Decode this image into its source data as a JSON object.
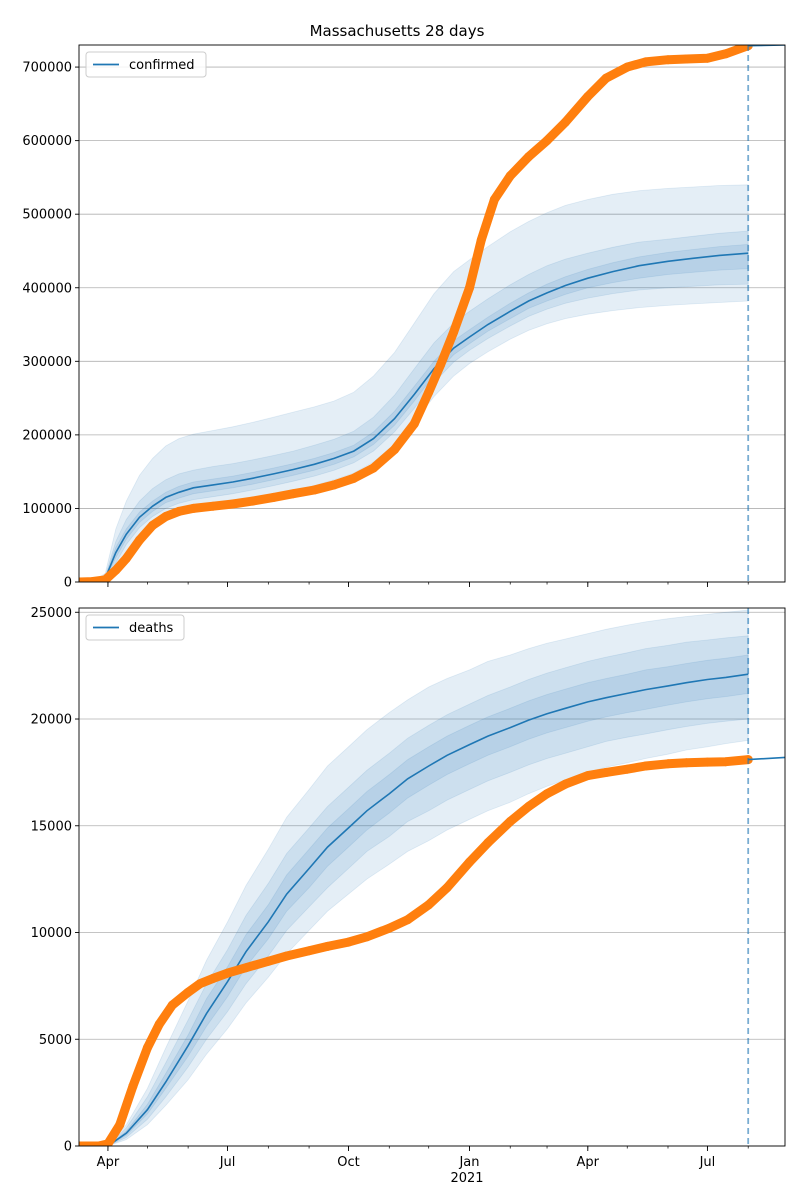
{
  "title": "Massachusetts 28 days",
  "colors": {
    "model": "#1f77b4",
    "observed": "#ff7f0e",
    "band": "#1f77b4",
    "grid": "#b0b0b0",
    "vline": "#1f77b4"
  },
  "x_ticks": [
    {
      "label": "Apr",
      "date": "2020-04-01"
    },
    {
      "label": "Jul",
      "date": "2020-07-01"
    },
    {
      "label": "Oct",
      "date": "2020-10-01"
    },
    {
      "label": "Jan",
      "date": "2021-01-01"
    },
    {
      "label": "Apr",
      "date": "2021-04-01"
    },
    {
      "label": "Jul",
      "date": "2021-07-01"
    }
  ],
  "x_year_label": "2021",
  "chart_data": [
    {
      "type": "line",
      "legend": "confirmed",
      "legend_position": "upper-left",
      "grid": "y",
      "xlim": [
        "2020-03-10",
        "2021-08-29"
      ],
      "ylim": [
        0,
        730000
      ],
      "yticks": [
        0,
        100000,
        200000,
        300000,
        400000,
        500000,
        600000,
        700000
      ],
      "forecast_date": "2021-08-01",
      "series": [
        {
          "name": "confirmed",
          "role": "model median",
          "x": [
            "2020-03-10",
            "2020-03-20",
            "2020-03-30",
            "2020-04-07",
            "2020-04-15",
            "2020-04-25",
            "2020-05-05",
            "2020-05-15",
            "2020-05-25",
            "2020-06-05",
            "2020-06-20",
            "2020-07-05",
            "2020-07-20",
            "2020-08-05",
            "2020-08-20",
            "2020-09-05",
            "2020-09-20",
            "2020-10-05",
            "2020-10-20",
            "2020-11-05",
            "2020-11-20",
            "2020-12-05",
            "2020-12-20",
            "2021-01-01",
            "2021-01-15",
            "2021-02-01",
            "2021-02-15",
            "2021-03-01",
            "2021-03-15",
            "2021-04-01",
            "2021-04-20",
            "2021-05-10",
            "2021-06-01",
            "2021-06-20",
            "2021-07-10",
            "2021-08-01"
          ],
          "y": [
            0,
            0,
            5000,
            40000,
            65000,
            88000,
            103000,
            115000,
            122000,
            128000,
            132000,
            136000,
            141000,
            147000,
            153000,
            160000,
            168000,
            178000,
            195000,
            222000,
            255000,
            290000,
            318000,
            333000,
            350000,
            368000,
            382000,
            393000,
            403000,
            413000,
            422000,
            430000,
            436000,
            440000,
            444000,
            447000
          ]
        },
        {
          "name": "",
          "role": "observed",
          "x": [
            "2020-03-10",
            "2020-03-20",
            "2020-03-30",
            "2020-04-07",
            "2020-04-15",
            "2020-04-25",
            "2020-05-05",
            "2020-05-15",
            "2020-05-25",
            "2020-06-05",
            "2020-06-20",
            "2020-07-05",
            "2020-07-20",
            "2020-08-05",
            "2020-08-20",
            "2020-09-05",
            "2020-09-20",
            "2020-10-05",
            "2020-10-20",
            "2020-11-05",
            "2020-11-20",
            "2020-12-01",
            "2020-12-10",
            "2020-12-20",
            "2021-01-01",
            "2021-01-10",
            "2021-01-20",
            "2021-02-01",
            "2021-02-15",
            "2021-03-01",
            "2021-03-15",
            "2021-04-01",
            "2021-04-15",
            "2021-05-01",
            "2021-05-15",
            "2021-06-01",
            "2021-06-15",
            "2021-07-01",
            "2021-07-15",
            "2021-08-01"
          ],
          "y": [
            0,
            500,
            3000,
            16000,
            32000,
            57000,
            77000,
            89000,
            96000,
            100000,
            103000,
            106000,
            110000,
            115000,
            120000,
            125000,
            132000,
            141000,
            155000,
            180000,
            215000,
            258000,
            295000,
            340000,
            400000,
            465000,
            520000,
            552000,
            578000,
            600000,
            625000,
            660000,
            685000,
            700000,
            707000,
            710000,
            711000,
            712000,
            718000,
            729000
          ]
        },
        {
          "name": "",
          "role": "observed continuation",
          "x": [
            "2021-08-01",
            "2021-08-29"
          ],
          "y": [
            729000,
            730000
          ]
        }
      ],
      "bands": [
        {
          "level": "outer",
          "lower": [
            0,
            0,
            0,
            15000,
            40000,
            62000,
            78000,
            88000,
            94000,
            99000,
            103000,
            107000,
            112000,
            118000,
            124000,
            131000,
            139000,
            148000,
            163000,
            187000,
            218000,
            252000,
            280000,
            297000,
            313000,
            330000,
            342000,
            351000,
            358000,
            364000,
            369000,
            373000,
            376000,
            378000,
            380000,
            382000
          ],
          "upper": [
            0,
            0,
            12000,
            72000,
            110000,
            145000,
            168000,
            185000,
            195000,
            201000,
            206000,
            211000,
            217000,
            224000,
            231000,
            238000,
            246000,
            258000,
            280000,
            312000,
            352000,
            392000,
            422000,
            438000,
            456000,
            476000,
            490000,
            502000,
            512000,
            520000,
            527000,
            532000,
            535000,
            537000,
            539000,
            540000
          ]
        },
        {
          "level": "middle",
          "lower": [
            0,
            0,
            2000,
            26000,
            51000,
            74000,
            89000,
            100000,
            107000,
            112000,
            116000,
            120000,
            125000,
            131000,
            137000,
            144000,
            152000,
            162000,
            178000,
            204000,
            236000,
            271000,
            299000,
            315000,
            331000,
            348000,
            361000,
            371000,
            379000,
            386000,
            392000,
            397000,
            400000,
            402000,
            404000,
            405000
          ],
          "upper": [
            0,
            0,
            8000,
            55000,
            85000,
            110000,
            127000,
            139000,
            147000,
            152000,
            157000,
            161000,
            166000,
            172000,
            178000,
            186000,
            194000,
            205000,
            224000,
            254000,
            290000,
            325000,
            352000,
            368000,
            385000,
            404000,
            418000,
            430000,
            439000,
            447000,
            455000,
            462000,
            466000,
            470000,
            474000,
            477000
          ]
        },
        {
          "level": "inner",
          "lower": [
            0,
            0,
            3500,
            33000,
            58000,
            81000,
            96000,
            108000,
            114000,
            120000,
            124000,
            128000,
            133000,
            139000,
            145000,
            152000,
            160000,
            170000,
            187000,
            213000,
            246000,
            281000,
            309000,
            324000,
            341000,
            358000,
            372000,
            382000,
            391000,
            400000,
            407000,
            413000,
            418000,
            421000,
            424000,
            426000
          ],
          "upper": [
            0,
            0,
            6500,
            47000,
            72000,
            95000,
            110000,
            122000,
            130000,
            136000,
            140000,
            144000,
            149000,
            155000,
            161000,
            168000,
            176000,
            186000,
            204000,
            232000,
            266000,
            300000,
            328000,
            343000,
            360000,
            379000,
            393000,
            405000,
            415000,
            425000,
            434000,
            442000,
            448000,
            452000,
            456000,
            459000
          ]
        }
      ]
    },
    {
      "type": "line",
      "legend": "deaths",
      "legend_position": "upper-left",
      "grid": "y",
      "xlim": [
        "2020-03-10",
        "2021-08-29"
      ],
      "ylim": [
        0,
        25200
      ],
      "yticks": [
        0,
        5000,
        10000,
        15000,
        20000,
        25000
      ],
      "forecast_date": "2021-08-01",
      "series": [
        {
          "name": "deaths",
          "role": "model median",
          "x": [
            "2020-03-10",
            "2020-04-01",
            "2020-04-15",
            "2020-05-01",
            "2020-05-15",
            "2020-06-01",
            "2020-06-15",
            "2020-07-01",
            "2020-07-15",
            "2020-08-01",
            "2020-08-15",
            "2020-09-01",
            "2020-09-15",
            "2020-10-01",
            "2020-10-15",
            "2020-11-01",
            "2020-11-15",
            "2020-12-01",
            "2020-12-15",
            "2021-01-01",
            "2021-01-15",
            "2021-02-01",
            "2021-02-15",
            "2021-03-01",
            "2021-03-15",
            "2021-04-01",
            "2021-04-15",
            "2021-05-01",
            "2021-05-15",
            "2021-06-01",
            "2021-06-15",
            "2021-07-01",
            "2021-07-15",
            "2021-08-01"
          ],
          "y": [
            0,
            0,
            600,
            1700,
            3000,
            4700,
            6200,
            7700,
            9100,
            10500,
            11800,
            13000,
            14000,
            14900,
            15700,
            16500,
            17200,
            17800,
            18300,
            18800,
            19200,
            19600,
            19950,
            20250,
            20500,
            20800,
            21000,
            21200,
            21380,
            21550,
            21700,
            21850,
            21950,
            22100
          ]
        },
        {
          "name": "",
          "role": "observed",
          "x": [
            "2020-03-10",
            "2020-03-25",
            "2020-04-01",
            "2020-04-10",
            "2020-04-20",
            "2020-05-01",
            "2020-05-10",
            "2020-05-20",
            "2020-06-01",
            "2020-06-10",
            "2020-06-20",
            "2020-07-01",
            "2020-07-15",
            "2020-08-01",
            "2020-08-15",
            "2020-09-01",
            "2020-09-15",
            "2020-10-01",
            "2020-10-15",
            "2020-11-01",
            "2020-11-15",
            "2020-12-01",
            "2020-12-15",
            "2021-01-01",
            "2021-01-15",
            "2021-02-01",
            "2021-02-15",
            "2021-03-01",
            "2021-03-15",
            "2021-04-01",
            "2021-04-15",
            "2021-05-01",
            "2021-05-15",
            "2021-06-01",
            "2021-06-15",
            "2021-07-01",
            "2021-07-15",
            "2021-08-01"
          ],
          "y": [
            0,
            0,
            100,
            1000,
            2800,
            4600,
            5700,
            6600,
            7200,
            7600,
            7850,
            8100,
            8350,
            8650,
            8900,
            9150,
            9350,
            9550,
            9800,
            10200,
            10600,
            11300,
            12100,
            13300,
            14200,
            15200,
            15900,
            16500,
            16950,
            17350,
            17500,
            17650,
            17800,
            17900,
            17950,
            17980,
            18000,
            18100
          ]
        },
        {
          "name": "",
          "role": "observed continuation",
          "x": [
            "2021-08-01",
            "2021-08-29"
          ],
          "y": [
            18100,
            18200
          ]
        }
      ],
      "bands": [
        {
          "level": "outer",
          "lower": [
            0,
            0,
            300,
            1000,
            1900,
            3100,
            4300,
            5500,
            6700,
            7900,
            9000,
            10100,
            11000,
            11800,
            12500,
            13200,
            13800,
            14300,
            14800,
            15300,
            15700,
            16100,
            16500,
            16850,
            17150,
            17500,
            17750,
            17950,
            18150,
            18350,
            18550,
            18700,
            18850,
            19000
          ],
          "upper": [
            0,
            0,
            1000,
            2700,
            4600,
            6800,
            8700,
            10500,
            12200,
            13900,
            15400,
            16700,
            17800,
            18700,
            19500,
            20300,
            20900,
            21500,
            21900,
            22300,
            22700,
            23000,
            23300,
            23550,
            23750,
            24000,
            24200,
            24400,
            24550,
            24700,
            24800,
            24900,
            25000,
            25100
          ]
        },
        {
          "level": "middle",
          "lower": [
            0,
            0,
            400,
            1250,
            2300,
            3700,
            5000,
            6300,
            7600,
            8900,
            10100,
            11200,
            12100,
            13000,
            13800,
            14500,
            15200,
            15700,
            16200,
            16700,
            17100,
            17500,
            17850,
            18150,
            18400,
            18700,
            18950,
            19150,
            19300,
            19500,
            19650,
            19800,
            19900,
            20000
          ],
          "upper": [
            0,
            0,
            850,
            2300,
            3900,
            5900,
            7600,
            9200,
            10800,
            12300,
            13700,
            14900,
            15900,
            16800,
            17600,
            18400,
            19100,
            19700,
            20200,
            20700,
            21100,
            21500,
            21850,
            22150,
            22400,
            22700,
            22900,
            23100,
            23300,
            23450,
            23600,
            23700,
            23800,
            23900
          ]
        },
        {
          "level": "inner",
          "lower": [
            0,
            0,
            500,
            1500,
            2700,
            4200,
            5600,
            7000,
            8400,
            9700,
            11000,
            12100,
            13100,
            14000,
            14800,
            15600,
            16300,
            16900,
            17400,
            17900,
            18300,
            18700,
            19050,
            19350,
            19600,
            19900,
            20100,
            20300,
            20450,
            20650,
            20800,
            20950,
            21050,
            21200
          ],
          "upper": [
            0,
            0,
            700,
            1950,
            3400,
            5200,
            6900,
            8400,
            9900,
            11300,
            12700,
            13900,
            14900,
            15800,
            16600,
            17400,
            18100,
            18700,
            19200,
            19700,
            20100,
            20500,
            20850,
            21150,
            21400,
            21700,
            21900,
            22100,
            22300,
            22450,
            22600,
            22750,
            22850,
            23000
          ]
        }
      ]
    }
  ]
}
